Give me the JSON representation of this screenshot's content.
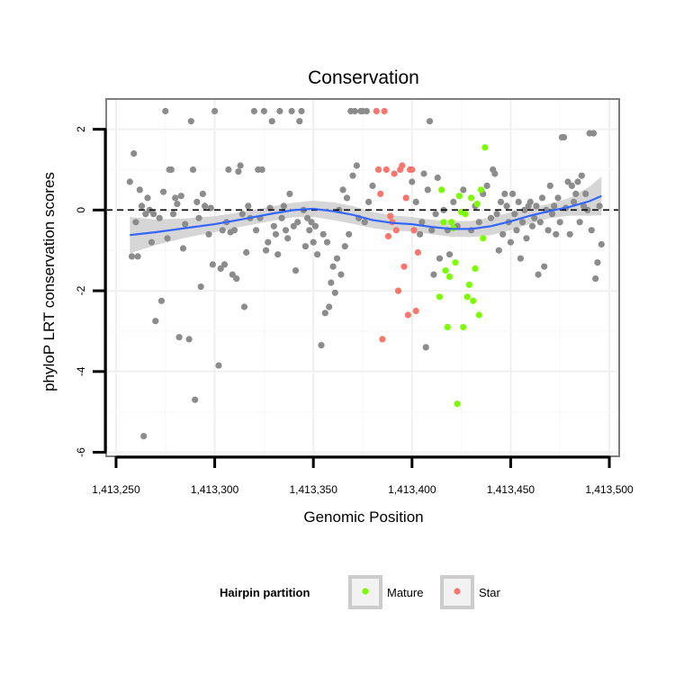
{
  "chart_data": {
    "type": "scatter",
    "title": "Conservation",
    "xlabel": "Genomic Position",
    "ylabel": "phyloP LRT conservation scores",
    "xlim": [
      1413245,
      1413505
    ],
    "ylim": [
      -6.1,
      2.75
    ],
    "xticks": [
      1413250,
      1413300,
      1413350,
      1413400,
      1413450,
      1413500
    ],
    "xtick_labels": [
      "1,413,250",
      "1,413,300",
      "1,413,350",
      "1,413,400",
      "1,413,450",
      "1,413,500"
    ],
    "yticks": [
      2,
      0,
      -2,
      -4,
      -6
    ],
    "ytick_labels": [
      "2",
      "0",
      "-2",
      "-4",
      "-6"
    ],
    "reference_line": 0,
    "grid": true,
    "legend": {
      "title": "Hairpin partition",
      "position": "bottom",
      "entries": [
        {
          "label": "Mature",
          "color": "#7cfc00"
        },
        {
          "label": "Star",
          "color": "#f8766d"
        }
      ]
    },
    "colors": {
      "other": "#8c8c8c",
      "Mature": "#7cfc00",
      "Star": "#f8766d",
      "smooth": "#3366ff",
      "ribbon": "#cfcfcf"
    },
    "series": [
      {
        "name": "Other",
        "points": [
          [
            1413257,
            0.7
          ],
          [
            1413258,
            -1.15
          ],
          [
            1413259,
            1.4
          ],
          [
            1413260,
            -0.3
          ],
          [
            1413261,
            -1.15
          ],
          [
            1413262,
            0.5
          ],
          [
            1413263,
            0.1
          ],
          [
            1413264,
            -5.6
          ],
          [
            1413265,
            -0.1
          ],
          [
            1413266,
            0.3
          ],
          [
            1413267,
            0.0
          ],
          [
            1413268,
            -0.8
          ],
          [
            1413269,
            -0.1
          ],
          [
            1413270,
            -2.75
          ],
          [
            1413272,
            -0.2
          ],
          [
            1413273,
            -2.25
          ],
          [
            1413274,
            0.45
          ],
          [
            1413275,
            2.45
          ],
          [
            1413276,
            -0.7
          ],
          [
            1413277,
            1.0
          ],
          [
            1413278,
            1.0
          ],
          [
            1413279,
            -0.1
          ],
          [
            1413280,
            0.3
          ],
          [
            1413281,
            0.15
          ],
          [
            1413282,
            -3.15
          ],
          [
            1413283,
            0.35
          ],
          [
            1413284,
            -0.95
          ],
          [
            1413285,
            -0.35
          ],
          [
            1413287,
            -3.2
          ],
          [
            1413288,
            2.2
          ],
          [
            1413289,
            1.0
          ],
          [
            1413290,
            -4.7
          ],
          [
            1413291,
            0.2
          ],
          [
            1413292,
            -0.2
          ],
          [
            1413293,
            -1.9
          ],
          [
            1413294,
            0.4
          ],
          [
            1413295,
            0.1
          ],
          [
            1413297,
            -0.6
          ],
          [
            1413298,
            0.05
          ],
          [
            1413299,
            -1.35
          ],
          [
            1413300,
            2.45
          ],
          [
            1413302,
            -3.85
          ],
          [
            1413303,
            -1.45
          ],
          [
            1413304,
            -0.5
          ],
          [
            1413305,
            -1.35
          ],
          [
            1413306,
            -0.3
          ],
          [
            1413307,
            1.0
          ],
          [
            1413308,
            -0.55
          ],
          [
            1413309,
            -1.6
          ],
          [
            1413310,
            -0.5
          ],
          [
            1413311,
            -1.7
          ],
          [
            1413312,
            0.95
          ],
          [
            1413313,
            1.1
          ],
          [
            1413314,
            -0.1
          ],
          [
            1413315,
            -2.4
          ],
          [
            1413316,
            -1.05
          ],
          [
            1413317,
            0.1
          ],
          [
            1413318,
            -0.2
          ],
          [
            1413320,
            2.45
          ],
          [
            1413321,
            -0.5
          ],
          [
            1413322,
            1.0
          ],
          [
            1413323,
            -0.2
          ],
          [
            1413324,
            1.0
          ],
          [
            1413325,
            2.45
          ],
          [
            1413326,
            -1.0
          ],
          [
            1413327,
            -0.8
          ],
          [
            1413328,
            0.05
          ],
          [
            1413329,
            2.2
          ],
          [
            1413330,
            -0.4
          ],
          [
            1413331,
            -0.6
          ],
          [
            1413332,
            -1.1
          ],
          [
            1413333,
            2.45
          ],
          [
            1413334,
            -0.2
          ],
          [
            1413335,
            0.1
          ],
          [
            1413336,
            -0.5
          ],
          [
            1413337,
            -0.7
          ],
          [
            1413338,
            0.4
          ],
          [
            1413339,
            2.45
          ],
          [
            1413340,
            -0.4
          ],
          [
            1413341,
            -1.5
          ],
          [
            1413342,
            -0.3
          ],
          [
            1413343,
            2.2
          ],
          [
            1413344,
            2.45
          ],
          [
            1413345,
            0.0
          ],
          [
            1413346,
            -0.9
          ],
          [
            1413347,
            -0.2
          ],
          [
            1413348,
            -0.5
          ],
          [
            1413349,
            -0.3
          ],
          [
            1413350,
            -0.8
          ],
          [
            1413351,
            -0.4
          ],
          [
            1413352,
            -1.1
          ],
          [
            1413354,
            -3.35
          ],
          [
            1413355,
            -0.6
          ],
          [
            1413356,
            -2.55
          ],
          [
            1413357,
            -0.8
          ],
          [
            1413358,
            -2.4
          ],
          [
            1413359,
            -1.8
          ],
          [
            1413360,
            -1.4
          ],
          [
            1413361,
            -2.05
          ],
          [
            1413362,
            -1.2
          ],
          [
            1413363,
            0.0
          ],
          [
            1413364,
            -1.6
          ],
          [
            1413365,
            0.5
          ],
          [
            1413366,
            -0.9
          ],
          [
            1413367,
            0.3
          ],
          [
            1413368,
            -0.6
          ],
          [
            1413369,
            2.45
          ],
          [
            1413370,
            0.85
          ],
          [
            1413371,
            2.45
          ],
          [
            1413372,
            1.1
          ],
          [
            1413373,
            -0.2
          ],
          [
            1413374,
            2.45
          ],
          [
            1413375,
            2.45
          ],
          [
            1413376,
            -0.3
          ],
          [
            1413377,
            2.45
          ],
          [
            1413378,
            0.2
          ],
          [
            1413380,
            0.6
          ],
          [
            1413400,
            0.7
          ],
          [
            1413401,
            -0.5
          ],
          [
            1413402,
            0.2
          ],
          [
            1413404,
            -0.6
          ],
          [
            1413405,
            -0.3
          ],
          [
            1413406,
            0.9
          ],
          [
            1413407,
            -3.4
          ],
          [
            1413408,
            0.5
          ],
          [
            1413409,
            2.2
          ],
          [
            1413410,
            -0.5
          ],
          [
            1413411,
            -1.6
          ],
          [
            1413412,
            -0.1
          ],
          [
            1413413,
            0.8
          ],
          [
            1413414,
            -1.2
          ],
          [
            1413416,
            0.0
          ],
          [
            1413418,
            -0.5
          ],
          [
            1413419,
            -1.1
          ],
          [
            1413421,
            0.2
          ],
          [
            1413423,
            -0.4
          ],
          [
            1413426,
            0.5
          ],
          [
            1413430,
            -0.5
          ],
          [
            1413432,
            0.1
          ],
          [
            1413434,
            -0.3
          ],
          [
            1413436,
            0.4
          ],
          [
            1413438,
            0.6
          ],
          [
            1413440,
            -0.2
          ],
          [
            1413441,
            1.0
          ],
          [
            1413442,
            0.9
          ],
          [
            1413443,
            -0.1
          ],
          [
            1413444,
            -1.0
          ],
          [
            1413445,
            0.2
          ],
          [
            1413446,
            -0.6
          ],
          [
            1413447,
            0.4
          ],
          [
            1413448,
            0.1
          ],
          [
            1413449,
            -0.3
          ],
          [
            1413450,
            -0.8
          ],
          [
            1413451,
            0.4
          ],
          [
            1413452,
            -0.1
          ],
          [
            1413453,
            -0.5
          ],
          [
            1413454,
            0.2
          ],
          [
            1413455,
            -1.2
          ],
          [
            1413456,
            -0.3
          ],
          [
            1413457,
            0.0
          ],
          [
            1413458,
            -0.7
          ],
          [
            1413459,
            0.1
          ],
          [
            1413460,
            0.2
          ],
          [
            1413461,
            -0.4
          ],
          [
            1413462,
            -0.2
          ],
          [
            1413463,
            0.1
          ],
          [
            1413464,
            -1.6
          ],
          [
            1413465,
            -0.3
          ],
          [
            1413466,
            0.3
          ],
          [
            1413467,
            -1.4
          ],
          [
            1413468,
            0.0
          ],
          [
            1413469,
            -0.5
          ],
          [
            1413470,
            0.6
          ],
          [
            1413471,
            -0.1
          ],
          [
            1413472,
            0.1
          ],
          [
            1413473,
            -0.6
          ],
          [
            1413474,
            0.3
          ],
          [
            1413475,
            -0.3
          ],
          [
            1413476,
            1.8
          ],
          [
            1413477,
            1.8
          ],
          [
            1413478,
            0.05
          ],
          [
            1413479,
            0.7
          ],
          [
            1413480,
            -0.6
          ],
          [
            1413481,
            0.6
          ],
          [
            1413482,
            0.2
          ],
          [
            1413483,
            0.4
          ],
          [
            1413484,
            0.7
          ],
          [
            1413485,
            -0.3
          ],
          [
            1413486,
            0.85
          ],
          [
            1413487,
            0.1
          ],
          [
            1413488,
            0.4
          ],
          [
            1413489,
            0.0
          ],
          [
            1413490,
            1.9
          ],
          [
            1413491,
            -0.5
          ],
          [
            1413492,
            1.9
          ],
          [
            1413493,
            -1.7
          ],
          [
            1413494,
            -1.3
          ],
          [
            1413495,
            0.1
          ],
          [
            1413496,
            -0.85
          ]
        ]
      },
      {
        "name": "Star",
        "points": [
          [
            1413382,
            2.45
          ],
          [
            1413383,
            1.0
          ],
          [
            1413384,
            0.4
          ],
          [
            1413385,
            -3.2
          ],
          [
            1413386,
            2.45
          ],
          [
            1413387,
            1.0
          ],
          [
            1413388,
            -0.65
          ],
          [
            1413389,
            -0.15
          ],
          [
            1413390,
            -0.3
          ],
          [
            1413391,
            0.9
          ],
          [
            1413392,
            -0.5
          ],
          [
            1413393,
            -2.0
          ],
          [
            1413394,
            1.0
          ],
          [
            1413395,
            1.1
          ],
          [
            1413396,
            -1.4
          ],
          [
            1413397,
            0.3
          ],
          [
            1413398,
            -2.6
          ],
          [
            1413399,
            1.0
          ],
          [
            1413400,
            1.0
          ],
          [
            1413401,
            -0.5
          ],
          [
            1413402,
            -2.5
          ],
          [
            1413403,
            -1.05
          ]
        ]
      },
      {
        "name": "Mature",
        "points": [
          [
            1413414,
            -2.15
          ],
          [
            1413415,
            0.5
          ],
          [
            1413416,
            -0.3
          ],
          [
            1413417,
            -1.5
          ],
          [
            1413418,
            -2.9
          ],
          [
            1413419,
            -1.65
          ],
          [
            1413420,
            -0.3
          ],
          [
            1413421,
            -0.45
          ],
          [
            1413422,
            -1.3
          ],
          [
            1413423,
            -4.8
          ],
          [
            1413424,
            0.35
          ],
          [
            1413425,
            -0.05
          ],
          [
            1413426,
            -2.9
          ],
          [
            1413427,
            -0.1
          ],
          [
            1413428,
            -2.15
          ],
          [
            1413429,
            -1.85
          ],
          [
            1413430,
            0.3
          ],
          [
            1413431,
            -2.25
          ],
          [
            1413432,
            -1.45
          ],
          [
            1413433,
            0.15
          ],
          [
            1413434,
            -2.6
          ],
          [
            1413435,
            0.5
          ],
          [
            1413436,
            -0.7
          ],
          [
            1413437,
            1.55
          ]
        ]
      }
    ],
    "smooth": {
      "x": [
        1413257,
        1413270,
        1413285,
        1413300,
        1413315,
        1413330,
        1413340,
        1413350,
        1413360,
        1413370,
        1413380,
        1413390,
        1413400,
        1413410,
        1413420,
        1413430,
        1413440,
        1413450,
        1413460,
        1413470,
        1413480,
        1413490,
        1413496
      ],
      "y": [
        -0.62,
        -0.55,
        -0.45,
        -0.35,
        -0.22,
        -0.08,
        0.0,
        0.03,
        -0.03,
        -0.12,
        -0.25,
        -0.32,
        -0.35,
        -0.42,
        -0.47,
        -0.47,
        -0.4,
        -0.28,
        -0.14,
        -0.02,
        0.08,
        0.22,
        0.35
      ],
      "se": [
        0.45,
        0.32,
        0.24,
        0.2,
        0.18,
        0.18,
        0.18,
        0.2,
        0.22,
        0.22,
        0.2,
        0.19,
        0.18,
        0.18,
        0.19,
        0.2,
        0.22,
        0.22,
        0.2,
        0.18,
        0.22,
        0.36,
        0.48
      ]
    }
  }
}
